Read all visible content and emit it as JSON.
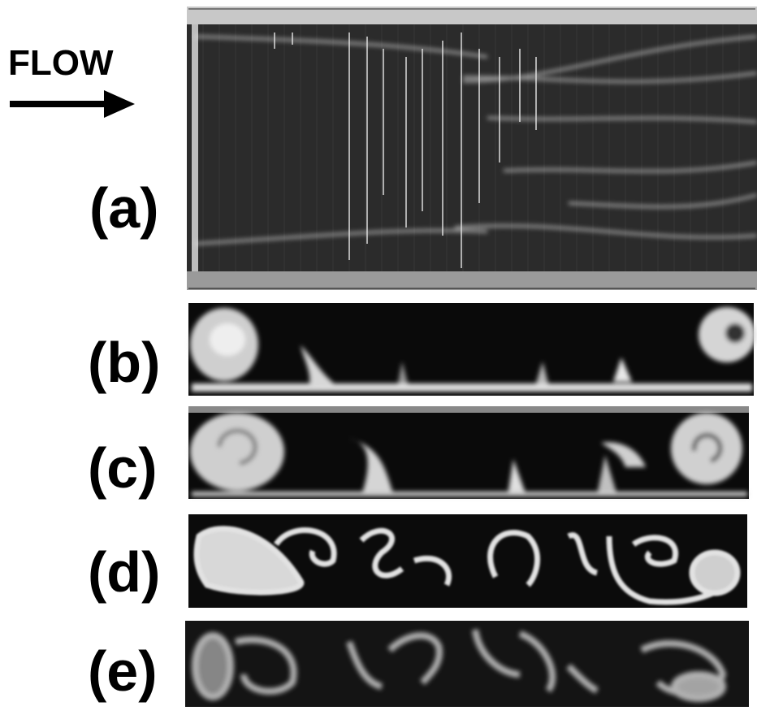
{
  "flow_label": "FLOW",
  "panels": [
    {
      "label": "(a)"
    },
    {
      "label": "(b)"
    },
    {
      "label": "(c)"
    },
    {
      "label": "(d)"
    },
    {
      "label": "(e)"
    }
  ]
}
